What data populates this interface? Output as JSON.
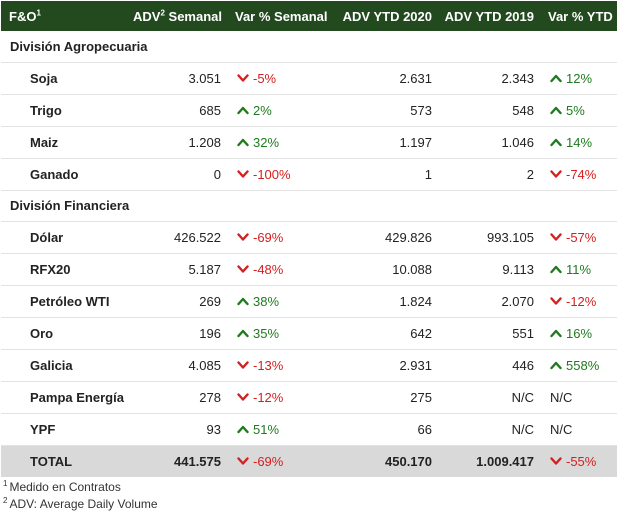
{
  "header": {
    "col0": "F&O",
    "col0_sup": "1",
    "col1": "ADV",
    "col1_sup": "2",
    "col1_suffix": " Semanal",
    "col2": "Var % Semanal",
    "col3": "ADV YTD 2020",
    "col4": "ADV YTD 2019",
    "col5": "Var % YTD"
  },
  "sections": [
    {
      "title": "División Agropecuaria",
      "rows": [
        {
          "name": "Soja",
          "adv": "3.051",
          "var_sem": "-5%",
          "var_sem_dir": "down",
          "ytd2020": "2.631",
          "ytd2019": "2.343",
          "var_ytd": "12%",
          "var_ytd_dir": "up"
        },
        {
          "name": "Trigo",
          "adv": "685",
          "var_sem": "2%",
          "var_sem_dir": "up",
          "ytd2020": "573",
          "ytd2019": "548",
          "var_ytd": "5%",
          "var_ytd_dir": "up"
        },
        {
          "name": "Maiz",
          "adv": "1.208",
          "var_sem": "32%",
          "var_sem_dir": "up",
          "ytd2020": "1.197",
          "ytd2019": "1.046",
          "var_ytd": "14%",
          "var_ytd_dir": "up"
        },
        {
          "name": "Ganado",
          "adv": "0",
          "var_sem": "-100%",
          "var_sem_dir": "down",
          "ytd2020": "1",
          "ytd2019": "2",
          "var_ytd": "-74%",
          "var_ytd_dir": "down"
        }
      ]
    },
    {
      "title": "División Financiera",
      "rows": [
        {
          "name": "Dólar",
          "adv": "426.522",
          "var_sem": "-69%",
          "var_sem_dir": "down",
          "ytd2020": "429.826",
          "ytd2019": "993.105",
          "var_ytd": "-57%",
          "var_ytd_dir": "down"
        },
        {
          "name": "RFX20",
          "adv": "5.187",
          "var_sem": "-48%",
          "var_sem_dir": "down",
          "ytd2020": "10.088",
          "ytd2019": "9.113",
          "var_ytd": "11%",
          "var_ytd_dir": "up"
        },
        {
          "name": "Petróleo WTI",
          "adv": "269",
          "var_sem": "38%",
          "var_sem_dir": "up",
          "ytd2020": "1.824",
          "ytd2019": "2.070",
          "var_ytd": "-12%",
          "var_ytd_dir": "down"
        },
        {
          "name": "Oro",
          "adv": "196",
          "var_sem": "35%",
          "var_sem_dir": "up",
          "ytd2020": "642",
          "ytd2019": "551",
          "var_ytd": "16%",
          "var_ytd_dir": "up"
        },
        {
          "name": "Galicia",
          "adv": "4.085",
          "var_sem": "-13%",
          "var_sem_dir": "down",
          "ytd2020": "2.931",
          "ytd2019": "446",
          "var_ytd": "558%",
          "var_ytd_dir": "up"
        },
        {
          "name": "Pampa Energía",
          "adv": "278",
          "var_sem": "-12%",
          "var_sem_dir": "down",
          "ytd2020": "275",
          "ytd2019": "N/C",
          "var_ytd": "N/C",
          "var_ytd_dir": "none"
        },
        {
          "name": "YPF",
          "adv": "93",
          "var_sem": "51%",
          "var_sem_dir": "up",
          "ytd2020": "66",
          "ytd2019": "N/C",
          "var_ytd": "N/C",
          "var_ytd_dir": "none"
        }
      ]
    }
  ],
  "total": {
    "name": "TOTAL",
    "adv": "441.575",
    "var_sem": "-69%",
    "var_sem_dir": "down",
    "ytd2020": "450.170",
    "ytd2019": "1.009.417",
    "var_ytd": "-55%",
    "var_ytd_dir": "down"
  },
  "footnotes": [
    {
      "mark": "1",
      "text": "Medido en Contratos"
    },
    {
      "mark": "2",
      "text": "ADV: Average Daily Volume"
    }
  ],
  "colors": {
    "header_bg": "#23491f",
    "up": "#1f7a1f",
    "down": "#d42020",
    "total_bg": "#d9d9d9"
  },
  "icons": {
    "up": "chevron-up-icon",
    "down": "chevron-down-icon"
  }
}
